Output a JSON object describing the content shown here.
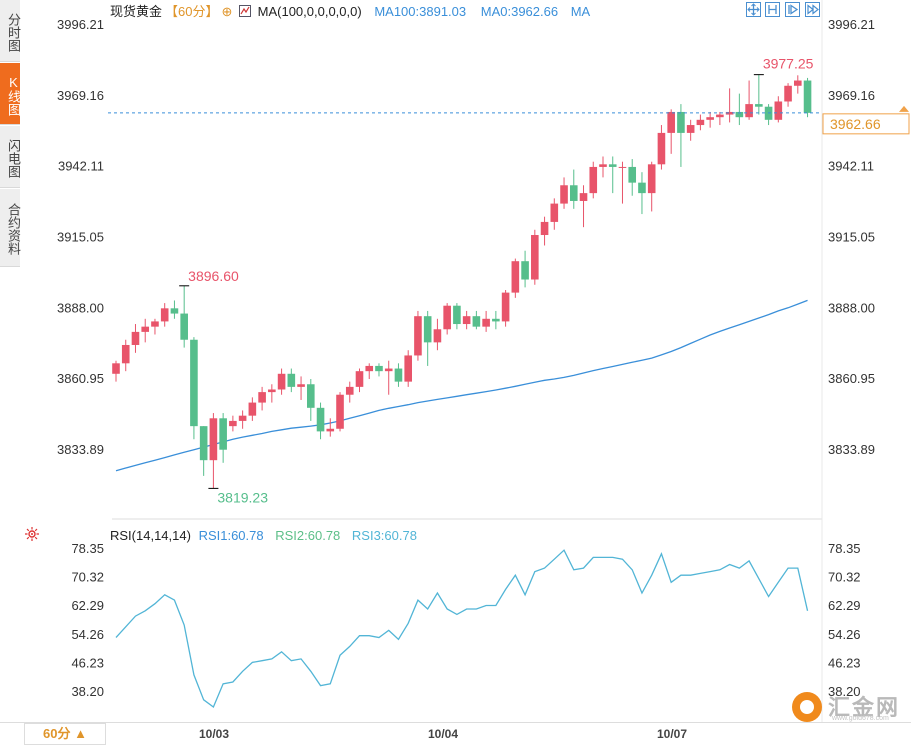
{
  "side_tabs": [
    "分时图",
    "K线图",
    "闪电图",
    "合约资料"
  ],
  "active_tab": 1,
  "header": {
    "symbol": "现货黄金",
    "period": "【60分】",
    "ma_label": "MA(100,0,0,0,0,0)",
    "ma100": "MA100:3891.03",
    "ma0": "MA0:3962.66",
    "ma_end": "MA"
  },
  "price_axis": {
    "ticks": [
      "3996.21",
      "3969.16",
      "3942.11",
      "3915.05",
      "3888.00",
      "3860.95",
      "3833.89"
    ],
    "current": "3962.66"
  },
  "annotations": {
    "high_right": "3977.25",
    "high_left": "3896.60",
    "low_left": "3819.23"
  },
  "rsi": {
    "name": "RSI(14,14,14)",
    "rsi1": "RSI1:60.78",
    "rsi2": "RSI2:60.78",
    "rsi3": "RSI3:60.78",
    "ticks": [
      "78.35",
      "70.32",
      "62.29",
      "54.26",
      "46.23",
      "38.20"
    ]
  },
  "x_labels": [
    "10/03",
    "10/04",
    "10/07"
  ],
  "bottom": {
    "period_button": "60分 ▲"
  },
  "logo": {
    "text": "汇金网",
    "url": "www.gold678.com"
  },
  "colors": {
    "up": "#e8546a",
    "down": "#56be8c",
    "ma": "#3a8fd9",
    "rsi": "#52b5d6",
    "current_line": "#3a8fd9"
  },
  "chart_data": {
    "type": "candlestick",
    "interval": "60分",
    "price_range": [
      3815,
      4000
    ],
    "candles": [
      {
        "o": 3863,
        "h": 3868,
        "l": 3860,
        "c": 3867
      },
      {
        "o": 3867,
        "h": 3876,
        "l": 3864,
        "c": 3874
      },
      {
        "o": 3874,
        "h": 3882,
        "l": 3871,
        "c": 3879
      },
      {
        "o": 3879,
        "h": 3884,
        "l": 3875,
        "c": 3881
      },
      {
        "o": 3881,
        "h": 3884,
        "l": 3878,
        "c": 3883
      },
      {
        "o": 3883,
        "h": 3890,
        "l": 3881,
        "c": 3888
      },
      {
        "o": 3888,
        "h": 3891,
        "l": 3884,
        "c": 3886
      },
      {
        "o": 3886,
        "h": 3896.6,
        "l": 3873,
        "c": 3876
      },
      {
        "o": 3876,
        "h": 3877,
        "l": 3838,
        "c": 3843
      },
      {
        "o": 3843,
        "h": 3843,
        "l": 3824,
        "c": 3830
      },
      {
        "o": 3830,
        "h": 3848,
        "l": 3819.23,
        "c": 3846
      },
      {
        "o": 3846,
        "h": 3848,
        "l": 3829,
        "c": 3834
      },
      {
        "o": 3843,
        "h": 3847,
        "l": 3841,
        "c": 3845
      },
      {
        "o": 3845,
        "h": 3849,
        "l": 3842,
        "c": 3847
      },
      {
        "o": 3847,
        "h": 3854,
        "l": 3845,
        "c": 3852
      },
      {
        "o": 3852,
        "h": 3858,
        "l": 3849,
        "c": 3856
      },
      {
        "o": 3856,
        "h": 3859,
        "l": 3852,
        "c": 3857
      },
      {
        "o": 3857,
        "h": 3865,
        "l": 3855,
        "c": 3863
      },
      {
        "o": 3863,
        "h": 3865,
        "l": 3856,
        "c": 3858
      },
      {
        "o": 3858,
        "h": 3862,
        "l": 3853,
        "c": 3859
      },
      {
        "o": 3859,
        "h": 3861,
        "l": 3845,
        "c": 3850
      },
      {
        "o": 3850,
        "h": 3852,
        "l": 3838,
        "c": 3841
      },
      {
        "o": 3841,
        "h": 3846,
        "l": 3839,
        "c": 3842
      },
      {
        "o": 3842,
        "h": 3856,
        "l": 3841,
        "c": 3855
      },
      {
        "o": 3855,
        "h": 3860,
        "l": 3852,
        "c": 3858
      },
      {
        "o": 3858,
        "h": 3865,
        "l": 3856,
        "c": 3864
      },
      {
        "o": 3864,
        "h": 3867,
        "l": 3861,
        "c": 3866
      },
      {
        "o": 3866,
        "h": 3867,
        "l": 3862,
        "c": 3864
      },
      {
        "o": 3864,
        "h": 3868,
        "l": 3855,
        "c": 3865
      },
      {
        "o": 3865,
        "h": 3867,
        "l": 3858,
        "c": 3860
      },
      {
        "o": 3860,
        "h": 3872,
        "l": 3858,
        "c": 3870
      },
      {
        "o": 3870,
        "h": 3887,
        "l": 3868,
        "c": 3885
      },
      {
        "o": 3885,
        "h": 3887,
        "l": 3866,
        "c": 3875
      },
      {
        "o": 3875,
        "h": 3884,
        "l": 3872,
        "c": 3880
      },
      {
        "o": 3880,
        "h": 3890,
        "l": 3878,
        "c": 3889
      },
      {
        "o": 3889,
        "h": 3890,
        "l": 3880,
        "c": 3882
      },
      {
        "o": 3882,
        "h": 3887,
        "l": 3880,
        "c": 3885
      },
      {
        "o": 3885,
        "h": 3887,
        "l": 3880,
        "c": 3881
      },
      {
        "o": 3881,
        "h": 3887,
        "l": 3879,
        "c": 3884
      },
      {
        "o": 3884,
        "h": 3887,
        "l": 3880,
        "c": 3883
      },
      {
        "o": 3883,
        "h": 3895,
        "l": 3881,
        "c": 3894
      },
      {
        "o": 3894,
        "h": 3907,
        "l": 3892,
        "c": 3906
      },
      {
        "o": 3906,
        "h": 3910,
        "l": 3896,
        "c": 3899
      },
      {
        "o": 3899,
        "h": 3918,
        "l": 3897,
        "c": 3916
      },
      {
        "o": 3916,
        "h": 3923,
        "l": 3912,
        "c": 3921
      },
      {
        "o": 3921,
        "h": 3930,
        "l": 3918,
        "c": 3928
      },
      {
        "o": 3928,
        "h": 3938,
        "l": 3926,
        "c": 3935
      },
      {
        "o": 3935,
        "h": 3941,
        "l": 3926,
        "c": 3929
      },
      {
        "o": 3929,
        "h": 3935,
        "l": 3919,
        "c": 3932
      },
      {
        "o": 3932,
        "h": 3944,
        "l": 3930,
        "c": 3942
      },
      {
        "o": 3942,
        "h": 3946,
        "l": 3938,
        "c": 3943
      },
      {
        "o": 3943,
        "h": 3946,
        "l": 3932,
        "c": 3942
      },
      {
        "o": 3942,
        "h": 3944,
        "l": 3928,
        "c": 3942
      },
      {
        "o": 3942,
        "h": 3945,
        "l": 3931,
        "c": 3936
      },
      {
        "o": 3936,
        "h": 3940,
        "l": 3924,
        "c": 3932
      },
      {
        "o": 3932,
        "h": 3944,
        "l": 3925,
        "c": 3943
      },
      {
        "o": 3943,
        "h": 3958,
        "l": 3941,
        "c": 3955
      },
      {
        "o": 3955,
        "h": 3964,
        "l": 3947,
        "c": 3963
      },
      {
        "o": 3963,
        "h": 3966,
        "l": 3942,
        "c": 3955
      },
      {
        "o": 3955,
        "h": 3960,
        "l": 3952,
        "c": 3958
      },
      {
        "o": 3958,
        "h": 3962,
        "l": 3956,
        "c": 3960
      },
      {
        "o": 3960,
        "h": 3963,
        "l": 3957,
        "c": 3961
      },
      {
        "o": 3961,
        "h": 3963,
        "l": 3958,
        "c": 3962
      },
      {
        "o": 3962,
        "h": 3972,
        "l": 3959,
        "c": 3963
      },
      {
        "o": 3963,
        "h": 3970,
        "l": 3958,
        "c": 3961
      },
      {
        "o": 3961,
        "h": 3975,
        "l": 3960,
        "c": 3966
      },
      {
        "o": 3966,
        "h": 3977.25,
        "l": 3962,
        "c": 3965
      },
      {
        "o": 3965,
        "h": 3966,
        "l": 3958,
        "c": 3960
      },
      {
        "o": 3960,
        "h": 3969,
        "l": 3959,
        "c": 3967
      },
      {
        "o": 3967,
        "h": 3974,
        "l": 3965,
        "c": 3973
      },
      {
        "o": 3973,
        "h": 3977,
        "l": 3970,
        "c": 3975
      },
      {
        "o": 3975,
        "h": 3976,
        "l": 3961,
        "c": 3962.66
      }
    ],
    "ma100": [
      3826,
      3827,
      3828,
      3829,
      3830,
      3831,
      3832,
      3833,
      3834,
      3835,
      3836,
      3837,
      3838,
      3838.8,
      3839.5,
      3840.2,
      3841,
      3841.6,
      3842.2,
      3842.6,
      3843,
      3843.5,
      3844.2,
      3845,
      3846,
      3847,
      3848,
      3849,
      3849.8,
      3850.5,
      3851.2,
      3852,
      3852.6,
      3853.2,
      3853.8,
      3854.4,
      3855,
      3855.6,
      3856.2,
      3856.8,
      3857.5,
      3858.2,
      3859,
      3859.8,
      3860.5,
      3861,
      3861.6,
      3862.4,
      3863.3,
      3864.2,
      3865,
      3865.8,
      3866.6,
      3867.4,
      3868.2,
      3869,
      3870.2,
      3871.5,
      3873,
      3874.6,
      3876.2,
      3877.8,
      3879.2,
      3880.5,
      3881.7,
      3883,
      3884.3,
      3885.6,
      3887,
      3888.2,
      3889.6,
      3891.03
    ],
    "rsi_range": [
      34,
      80
    ],
    "rsi": [
      53.5,
      56.5,
      59.5,
      61,
      63,
      65.5,
      64,
      57,
      43,
      36,
      34,
      40.5,
      41,
      44,
      46.5,
      47,
      47.5,
      49.5,
      47,
      47.5,
      44,
      40,
      40.5,
      48.5,
      51,
      54,
      54,
      53.5,
      55.5,
      53,
      57.5,
      64,
      61.5,
      66,
      61.5,
      60,
      61.5,
      61.5,
      62.5,
      62.5,
      67,
      71,
      65.5,
      72,
      73,
      75.5,
      78,
      72.5,
      73,
      76,
      76,
      76,
      75.5,
      72.5,
      66,
      71,
      77,
      69,
      71,
      71,
      71.5,
      72,
      72.5,
      74,
      73,
      75,
      70,
      65,
      69,
      73,
      73,
      61
    ]
  }
}
